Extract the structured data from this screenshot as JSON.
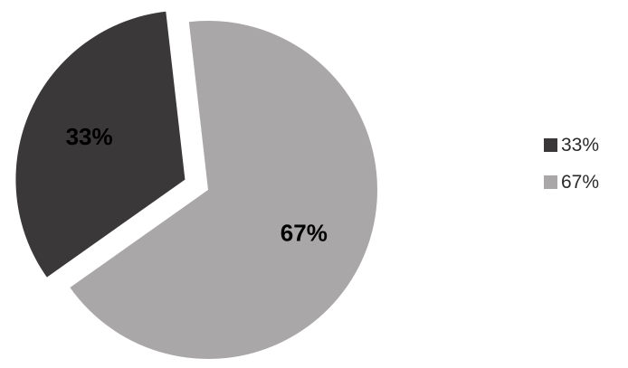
{
  "chart_data": {
    "type": "pie",
    "title": "",
    "slices": [
      {
        "label": "33%",
        "value": 33,
        "color": "#3a3838",
        "exploded": true
      },
      {
        "label": "67%",
        "value": 67,
        "color": "#a9a7a7",
        "exploded": false
      }
    ],
    "legend": {
      "placement": "right",
      "entries": [
        {
          "label": "33%",
          "color": "#3a3838"
        },
        {
          "label": "67%",
          "color": "#a9a7a7"
        }
      ]
    }
  }
}
